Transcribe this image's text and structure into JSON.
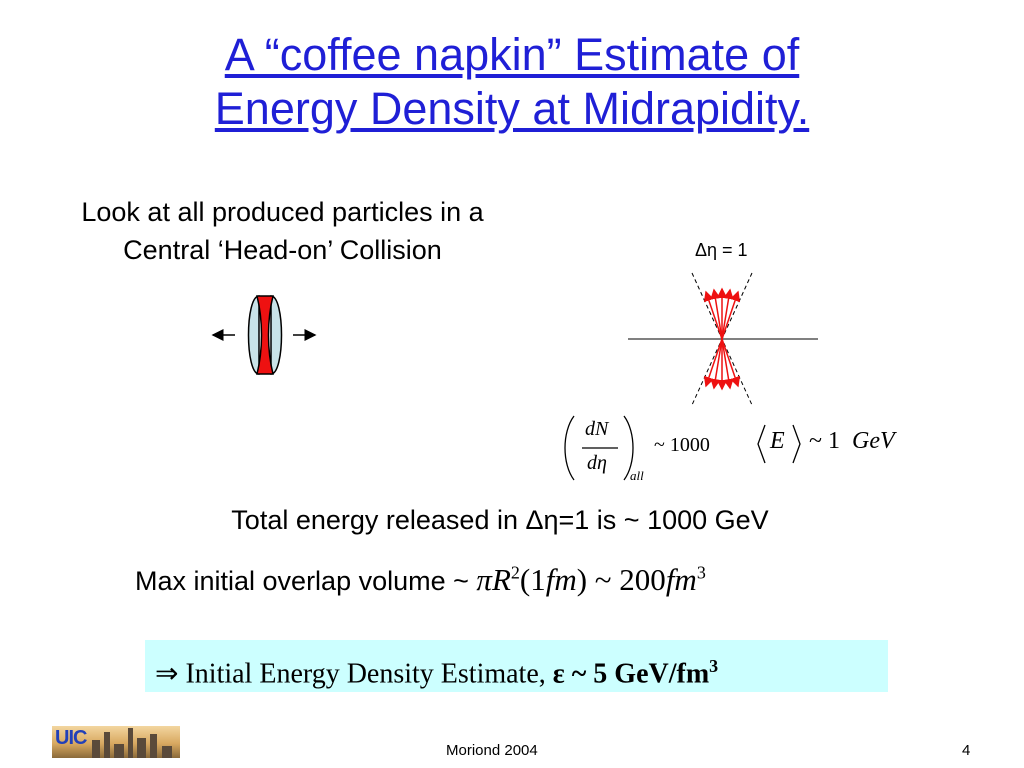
{
  "slide": {
    "title_line1": "A “coffee napkin” Estimate of",
    "title_line2": "Energy Density at Midrapidity.",
    "intro_line1": "Look at all produced particles in a",
    "intro_line2": "Central ‘Head-on’ Collision",
    "delta_eta_label": "Δη = 1",
    "multiplicity": {
      "numerator": "dN",
      "denominator": "dη",
      "subscript": "all",
      "value": "~ 1000"
    },
    "mean_energy": {
      "symbol": "E",
      "value": "~ 1",
      "unit": "GeV"
    },
    "total_energy_text": "Total energy released in Δη=1 is ~ 1000 GeV",
    "volume_text": "Max initial overlap volume ~ ",
    "volume_formula": {
      "pi": "π",
      "R": "R",
      "exp2": "2",
      "paren_open": "(1",
      "fm1": "fm",
      "paren_close": ")",
      "tilde": " ~ 200",
      "fm2": "fm",
      "exp3": "3"
    },
    "result": {
      "arrow": "⇒",
      "text": " Initial Energy Density Estimate, ",
      "bold": "ε ~ 5 GeV/fm",
      "exp": "3"
    },
    "colors": {
      "title": "#1f1fd6",
      "nucleus_fill": "#c9e3e8",
      "overlap_red": "#ee1111",
      "result_bg": "#ccffff"
    }
  },
  "footer": {
    "logo_text": "UIC",
    "center": "Moriond 2004",
    "page_number": "4"
  }
}
